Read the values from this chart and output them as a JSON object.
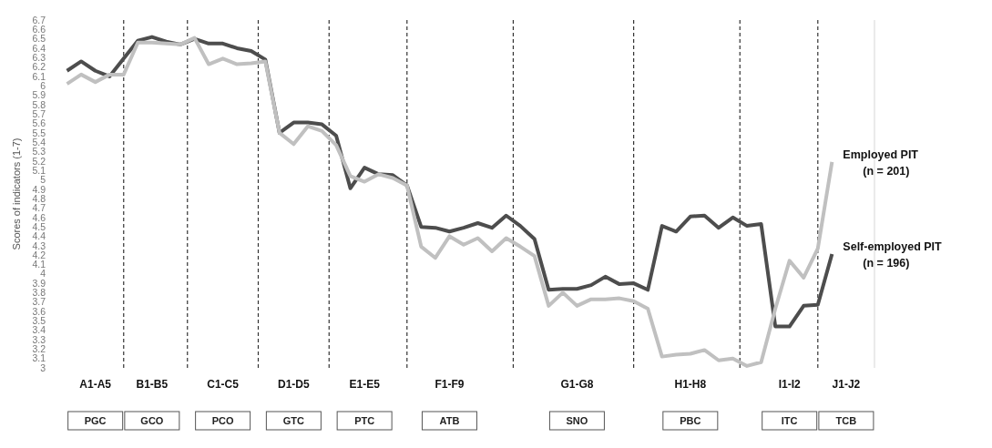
{
  "chart_data": {
    "type": "line",
    "ylabel": "Scores of indicators (1-7)",
    "categories": [
      null,
      null,
      null,
      "A1-A5",
      null,
      null,
      null,
      "B1-B5",
      null,
      null,
      null,
      null,
      "C1-C5",
      null,
      null,
      null,
      null,
      "D1-D5",
      null,
      null,
      null,
      null,
      "E1-E5",
      null,
      null,
      null,
      null,
      null,
      "F1-F9",
      null,
      null,
      null,
      null,
      null,
      null,
      null,
      null,
      "G1-G8",
      null,
      null,
      null,
      null,
      null,
      null,
      null,
      "H1-H8",
      null,
      null,
      null,
      null,
      null,
      null,
      "I1-I2",
      null,
      null,
      null,
      "J1-J2",
      null,
      null
    ],
    "annotations": [
      "PGC",
      "GCO",
      "PCO",
      "GTC",
      "PTC",
      "ATB",
      "SNO",
      "PBC",
      "ITC",
      "TCB"
    ],
    "ylim": [
      3,
      6.7
    ],
    "yticks": [
      3,
      3.1,
      3.2,
      3.3,
      3.4,
      3.5,
      3.6,
      3.7,
      3.8,
      3.9,
      4,
      4.1,
      4.2,
      4.3,
      4.4,
      4.5,
      4.6,
      4.7,
      4.8,
      4.9,
      5,
      5.1,
      5.2,
      5.3,
      5.4,
      5.5,
      5.6,
      5.7,
      5.8,
      5.9,
      6,
      6.1,
      6.2,
      6.3,
      6.4,
      6.5,
      6.6,
      6.7
    ],
    "grid": "x",
    "line_style": "solid",
    "series": [
      {
        "name": "Self-employed PIT\n(n = 196)",
        "color": "#4d4d4d",
        "values": [
          null,
          6.16,
          6.26,
          6.16,
          6.1,
          6.29,
          6.48,
          6.52,
          6.47,
          6.44,
          6.5,
          6.45,
          6.45,
          6.4,
          6.37,
          6.28,
          5.5,
          5.61,
          5.61,
          5.59,
          5.47,
          4.91,
          5.13,
          5.06,
          5.05,
          4.94,
          4.5,
          4.49,
          4.45,
          4.49,
          4.54,
          4.49,
          4.62,
          4.51,
          4.37,
          3.83,
          3.84,
          3.84,
          3.88,
          3.97,
          3.89,
          3.9,
          3.83,
          4.51,
          4.45,
          4.61,
          4.62,
          4.49,
          4.6,
          4.51,
          4.53,
          3.44,
          3.44,
          3.66,
          3.67,
          4.21,
          null,
          null,
          null
        ]
      },
      {
        "name": "Employed PIT\n(n = 201)",
        "color": "#c0c0c0",
        "values": [
          null,
          6.02,
          6.12,
          6.04,
          6.12,
          6.12,
          6.46,
          6.46,
          6.45,
          6.44,
          6.51,
          6.23,
          6.29,
          6.23,
          6.24,
          6.26,
          5.5,
          5.38,
          5.57,
          5.52,
          5.37,
          5.04,
          4.98,
          5.06,
          5.02,
          4.94,
          4.29,
          4.17,
          4.4,
          4.31,
          4.38,
          4.24,
          4.38,
          4.29,
          4.19,
          3.66,
          3.8,
          3.66,
          3.73,
          3.73,
          3.74,
          3.71,
          3.63,
          3.12,
          3.14,
          3.15,
          3.19,
          3.08,
          3.1,
          3.02,
          3.06,
          3.63,
          4.14,
          3.96,
          4.27,
          5.19,
          null,
          null,
          null
        ]
      }
    ]
  }
}
